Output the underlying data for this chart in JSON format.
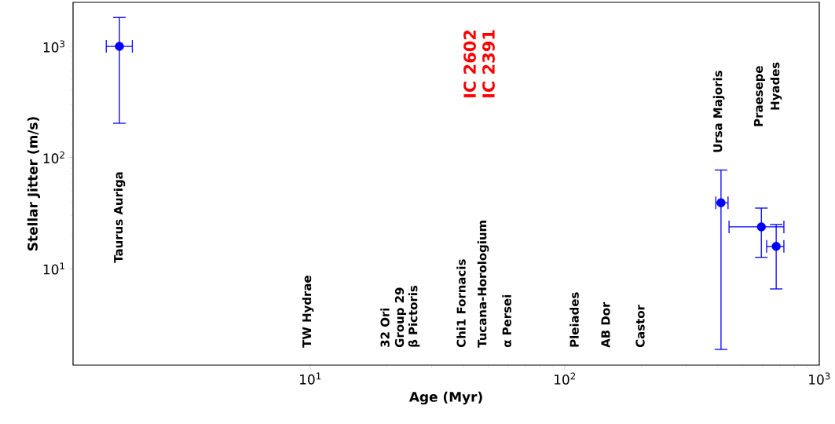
{
  "chart_data": {
    "type": "scatter",
    "xlabel": "Age (Myr)",
    "ylabel": "Stellar Jitter (m/s)",
    "log": "xy",
    "marker": "circle",
    "xlim": [
      1.17,
      1000
    ],
    "ylim": [
      1.35,
      2490
    ],
    "xticks": [
      {
        "value": 10,
        "label": "10$^{1}$"
      },
      {
        "value": 100,
        "label": "10$^{2}$"
      },
      {
        "value": 1000,
        "label": "10$^{3}$"
      }
    ],
    "yticks": [
      {
        "value": 10,
        "label": "10$^{1}$"
      },
      {
        "value": 100,
        "label": "10$^{2}$"
      },
      {
        "value": 1000,
        "label": "10$^{3}$"
      }
    ],
    "x": [
      1.78,
      411,
      592,
      677
    ],
    "series": [
      {
        "color": "#0000ff",
        "values": [
          1000,
          39,
          23.7,
          15.8
        ],
        "errors": [
          [
            203,
            1820
          ],
          [
            1.87,
            77
          ],
          [
            12.6,
            35
          ],
          [
            6.55,
            24.9
          ]
        ],
        "xerrors": [
          [
            1.58,
            2.0
          ],
          [
            392,
            438
          ],
          [
            442,
            726
          ],
          [
            621,
            726
          ]
        ]
      }
    ],
    "annotations": [
      "Taurus Auriga",
      "TW Hydrae",
      "32 Ori",
      "Group 29",
      "β Pictoris",
      "Chi1 Fornacis",
      "Tucana-Horologium",
      "α Persei",
      "Pleiades",
      "AB Dor",
      "Castor",
      "Ursa Majoris",
      "Praesepe",
      "Hyades",
      "IC 2602",
      "IC 2391"
    ]
  }
}
